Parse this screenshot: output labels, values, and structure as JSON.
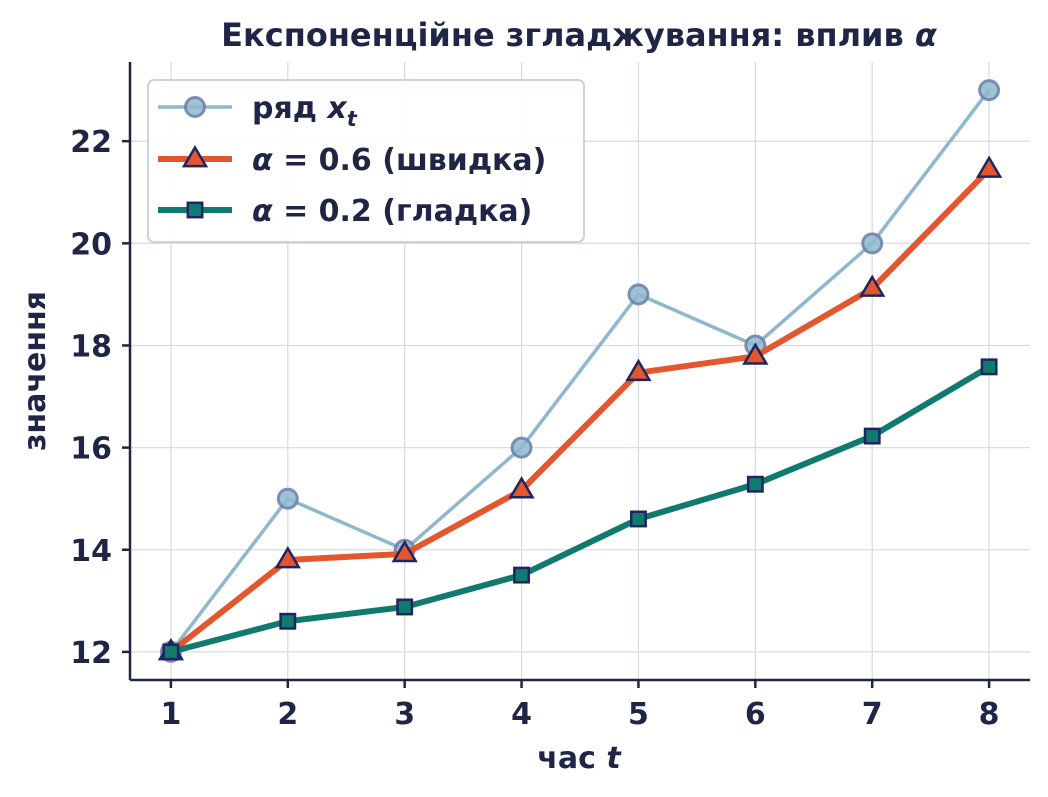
{
  "chart_data": {
    "type": "line",
    "title": "Експоненційне згладжування: вплив α",
    "xlabel": "час t",
    "ylabel": "значення",
    "x": [
      1,
      2,
      3,
      4,
      5,
      6,
      7,
      8
    ],
    "xlim": [
      0.65,
      8.35
    ],
    "ylim": [
      11.45,
      23.55
    ],
    "xticks": [
      1,
      2,
      3,
      4,
      5,
      6,
      7,
      8
    ],
    "yticks": [
      12,
      14,
      16,
      18,
      20,
      22
    ],
    "grid": true,
    "legend_position": "top-left",
    "series": [
      {
        "name": "ряд x_t",
        "legend_main": "ряд ",
        "legend_math": "x",
        "legend_sub": "t",
        "values": [
          12,
          15,
          14,
          16,
          19,
          18,
          20,
          23
        ],
        "color": "#8fb8cc",
        "marker": "circle",
        "marker_fill": "#8fb8cc",
        "marker_edge": "#6b7fa8"
      },
      {
        "name": "α = 0.6 (швидка)",
        "legend_math": "α",
        "legend_main": " = 0.6 (швидка)",
        "values": [
          12,
          13.8,
          13.92,
          15.168,
          17.467,
          17.787,
          19.115,
          21.446
        ],
        "color": "#e4572e",
        "marker": "triangle",
        "marker_fill": "#e4572e",
        "marker_edge": "#1f2560"
      },
      {
        "name": "α = 0.2 (гладка)",
        "legend_math": "α",
        "legend_main": " = 0.2 (гладка)",
        "values": [
          12,
          12.6,
          12.88,
          13.504,
          14.603,
          15.283,
          16.226,
          17.581
        ],
        "color": "#117a6e",
        "marker": "square",
        "marker_fill": "#117a6e",
        "marker_edge": "#1f2560"
      }
    ]
  }
}
